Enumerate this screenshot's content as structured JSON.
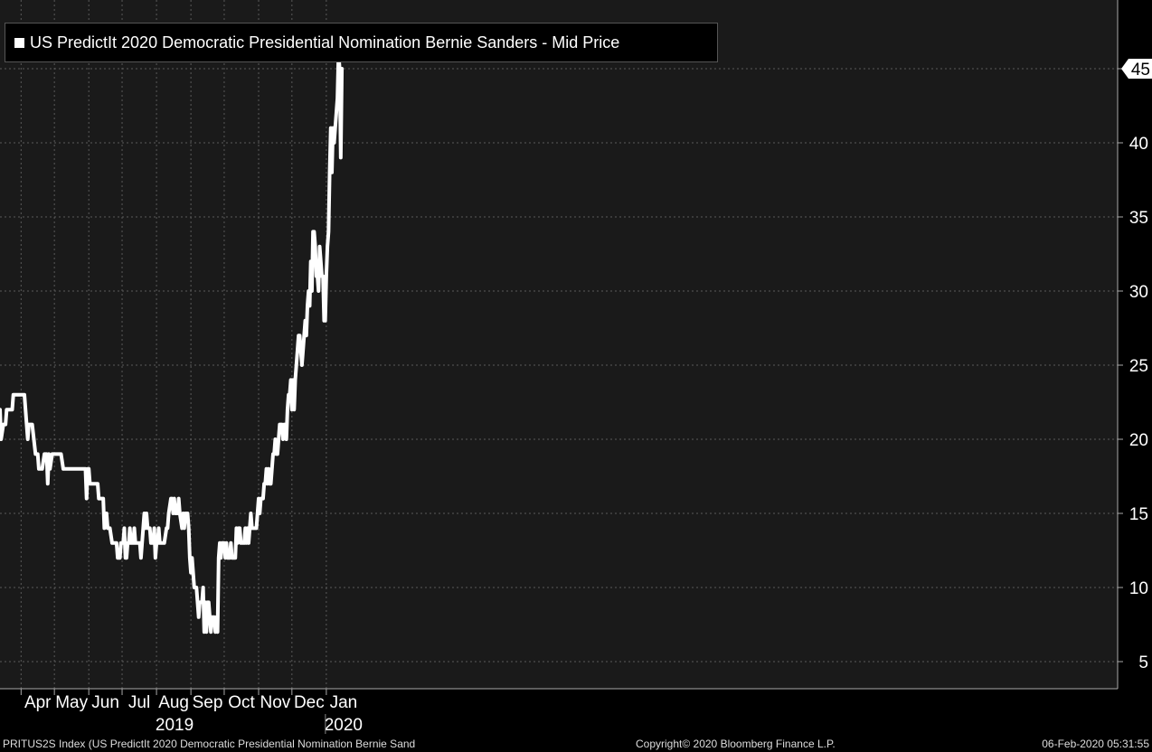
{
  "colors": {
    "background": "#1a1a1a",
    "series": "#ffffff",
    "grid": "#5a5a5a",
    "text": "#ffffff"
  },
  "chart_data": {
    "type": "line",
    "title": "",
    "xlabel": "",
    "ylabel": "",
    "ylim": [
      3,
      49
    ],
    "yticks": [
      5,
      10,
      15,
      20,
      25,
      30,
      35,
      40,
      45
    ],
    "grid": true,
    "legend_position": "top-left",
    "last_value_label": "45",
    "x_month_labels": [
      {
        "label": "Apr",
        "date": "2019-04-01"
      },
      {
        "label": "May",
        "date": "2019-05-01"
      },
      {
        "label": "Jun",
        "date": "2019-06-01"
      },
      {
        "label": "Jul",
        "date": "2019-07-01"
      },
      {
        "label": "Aug",
        "date": "2019-08-01"
      },
      {
        "label": "Sep",
        "date": "2019-09-01"
      },
      {
        "label": "Oct",
        "date": "2019-10-01"
      },
      {
        "label": "Nov",
        "date": "2019-11-01"
      },
      {
        "label": "Dec",
        "date": "2019-12-01"
      },
      {
        "label": "Jan",
        "date": "2020-01-01"
      }
    ],
    "x_year_labels": [
      {
        "label": "2019",
        "date": "2019-08-01"
      },
      {
        "label": "2020",
        "date": "2020-01-01"
      }
    ],
    "series": [
      {
        "name": "US PredictIt 2020 Democratic Presidential Nomination Bernie Sanders - Mid Price",
        "points": [
          [
            "2019-03-13",
            22
          ],
          [
            "2019-03-14",
            20
          ],
          [
            "2019-03-16",
            21
          ],
          [
            "2019-03-18",
            21
          ],
          [
            "2019-03-19",
            22
          ],
          [
            "2019-03-22",
            22
          ],
          [
            "2019-03-24",
            22
          ],
          [
            "2019-03-25",
            23
          ],
          [
            "2019-03-27",
            23
          ],
          [
            "2019-03-29",
            23
          ],
          [
            "2019-04-01",
            23
          ],
          [
            "2019-04-04",
            23
          ],
          [
            "2019-04-06",
            21
          ],
          [
            "2019-04-07",
            20
          ],
          [
            "2019-04-08",
            21
          ],
          [
            "2019-04-11",
            21
          ],
          [
            "2019-04-14",
            19
          ],
          [
            "2019-04-16",
            19
          ],
          [
            "2019-04-17",
            18
          ],
          [
            "2019-04-20",
            18
          ],
          [
            "2019-04-22",
            19
          ],
          [
            "2019-04-24",
            19
          ],
          [
            "2019-04-25",
            17
          ],
          [
            "2019-04-26",
            19
          ],
          [
            "2019-04-27",
            18
          ],
          [
            "2019-04-29",
            19
          ],
          [
            "2019-05-01",
            19
          ],
          [
            "2019-05-07",
            19
          ],
          [
            "2019-05-09",
            18
          ],
          [
            "2019-05-15",
            18
          ],
          [
            "2019-05-20",
            18
          ],
          [
            "2019-05-25",
            18
          ],
          [
            "2019-05-29",
            18
          ],
          [
            "2019-05-30",
            16
          ],
          [
            "2019-05-31",
            18
          ],
          [
            "2019-06-01",
            18
          ],
          [
            "2019-06-02",
            17
          ],
          [
            "2019-06-05",
            17
          ],
          [
            "2019-06-09",
            17
          ],
          [
            "2019-06-10",
            16
          ],
          [
            "2019-06-14",
            16
          ],
          [
            "2019-06-15",
            14
          ],
          [
            "2019-06-16",
            15
          ],
          [
            "2019-06-17",
            15
          ],
          [
            "2019-06-18",
            14
          ],
          [
            "2019-06-20",
            14
          ],
          [
            "2019-06-22",
            13
          ],
          [
            "2019-06-26",
            13
          ],
          [
            "2019-06-27",
            12
          ],
          [
            "2019-06-29",
            12
          ],
          [
            "2019-06-30",
            13
          ],
          [
            "2019-07-02",
            13
          ],
          [
            "2019-07-03",
            14
          ],
          [
            "2019-07-04",
            12
          ],
          [
            "2019-07-05",
            12
          ],
          [
            "2019-07-06",
            13
          ],
          [
            "2019-07-07",
            13
          ],
          [
            "2019-07-08",
            14
          ],
          [
            "2019-07-09",
            13
          ],
          [
            "2019-07-11",
            13
          ],
          [
            "2019-07-12",
            14
          ],
          [
            "2019-07-13",
            13
          ],
          [
            "2019-07-17",
            13
          ],
          [
            "2019-07-18",
            12
          ],
          [
            "2019-07-20",
            14
          ],
          [
            "2019-07-21",
            15
          ],
          [
            "2019-07-22",
            14
          ],
          [
            "2019-07-23",
            15
          ],
          [
            "2019-07-24",
            14
          ],
          [
            "2019-07-26",
            14
          ],
          [
            "2019-07-27",
            13
          ],
          [
            "2019-07-29",
            13
          ],
          [
            "2019-07-30",
            14
          ],
          [
            "2019-07-31",
            12
          ],
          [
            "2019-08-01",
            13
          ],
          [
            "2019-08-02",
            13
          ],
          [
            "2019-08-03",
            14
          ],
          [
            "2019-08-04",
            13
          ],
          [
            "2019-08-08",
            13
          ],
          [
            "2019-08-10",
            14
          ],
          [
            "2019-08-11",
            14
          ],
          [
            "2019-08-12",
            15
          ],
          [
            "2019-08-14",
            16
          ],
          [
            "2019-08-15",
            16
          ],
          [
            "2019-08-16",
            15
          ],
          [
            "2019-08-17",
            16
          ],
          [
            "2019-08-18",
            15
          ],
          [
            "2019-08-20",
            15
          ],
          [
            "2019-08-21",
            16
          ],
          [
            "2019-08-22",
            15
          ],
          [
            "2019-08-24",
            14
          ],
          [
            "2019-08-25",
            15
          ],
          [
            "2019-08-26",
            14
          ],
          [
            "2019-08-27",
            15
          ],
          [
            "2019-08-29",
            15
          ],
          [
            "2019-08-30",
            14
          ],
          [
            "2019-08-31",
            12
          ],
          [
            "2019-09-01",
            11
          ],
          [
            "2019-09-02",
            12
          ],
          [
            "2019-09-03",
            11
          ],
          [
            "2019-09-04",
            10
          ],
          [
            "2019-09-06",
            10
          ],
          [
            "2019-09-08",
            8
          ],
          [
            "2019-09-09",
            9
          ],
          [
            "2019-09-10",
            9
          ],
          [
            "2019-09-11",
            9
          ],
          [
            "2019-09-12",
            10
          ],
          [
            "2019-09-13",
            7
          ],
          [
            "2019-09-14",
            9
          ],
          [
            "2019-09-15",
            7
          ],
          [
            "2019-09-16",
            9
          ],
          [
            "2019-09-17",
            9
          ],
          [
            "2019-09-18",
            8
          ],
          [
            "2019-09-19",
            7
          ],
          [
            "2019-09-20",
            8
          ],
          [
            "2019-09-21",
            8
          ],
          [
            "2019-09-22",
            8
          ],
          [
            "2019-09-23",
            7
          ],
          [
            "2019-09-24",
            8
          ],
          [
            "2019-09-25",
            7
          ],
          [
            "2019-09-26",
            12
          ],
          [
            "2019-09-27",
            13
          ],
          [
            "2019-09-28",
            12
          ],
          [
            "2019-09-29",
            13
          ],
          [
            "2019-09-30",
            13
          ],
          [
            "2019-10-01",
            13
          ],
          [
            "2019-10-02",
            12
          ],
          [
            "2019-10-03",
            13
          ],
          [
            "2019-10-04",
            12
          ],
          [
            "2019-10-05",
            12
          ],
          [
            "2019-10-06",
            12
          ],
          [
            "2019-10-07",
            13
          ],
          [
            "2019-10-08",
            12
          ],
          [
            "2019-10-09",
            12
          ],
          [
            "2019-10-10",
            12
          ],
          [
            "2019-10-11",
            12
          ],
          [
            "2019-10-12",
            14
          ],
          [
            "2019-10-13",
            13
          ],
          [
            "2019-10-14",
            14
          ],
          [
            "2019-10-15",
            14
          ],
          [
            "2019-10-16",
            13
          ],
          [
            "2019-10-17",
            13
          ],
          [
            "2019-10-18",
            13
          ],
          [
            "2019-10-19",
            13
          ],
          [
            "2019-10-20",
            14
          ],
          [
            "2019-10-21",
            13
          ],
          [
            "2019-10-22",
            14
          ],
          [
            "2019-10-23",
            13
          ],
          [
            "2019-10-24",
            14
          ],
          [
            "2019-10-25",
            15
          ],
          [
            "2019-10-26",
            14
          ],
          [
            "2019-10-27",
            14
          ],
          [
            "2019-10-28",
            14
          ],
          [
            "2019-10-29",
            14
          ],
          [
            "2019-10-30",
            14
          ],
          [
            "2019-10-31",
            15
          ],
          [
            "2019-11-01",
            16
          ],
          [
            "2019-11-02",
            15
          ],
          [
            "2019-11-03",
            16
          ],
          [
            "2019-11-04",
            16
          ],
          [
            "2019-11-05",
            16
          ],
          [
            "2019-11-06",
            17
          ],
          [
            "2019-11-07",
            17
          ],
          [
            "2019-11-08",
            18
          ],
          [
            "2019-11-09",
            17
          ],
          [
            "2019-11-10",
            18
          ],
          [
            "2019-11-11",
            17
          ],
          [
            "2019-11-12",
            17
          ],
          [
            "2019-11-13",
            18
          ],
          [
            "2019-11-14",
            19
          ],
          [
            "2019-11-15",
            19
          ],
          [
            "2019-11-16",
            20
          ],
          [
            "2019-11-17",
            19
          ],
          [
            "2019-11-18",
            19
          ],
          [
            "2019-11-19",
            20
          ],
          [
            "2019-11-20",
            21
          ],
          [
            "2019-11-21",
            21
          ],
          [
            "2019-11-22",
            21
          ],
          [
            "2019-11-23",
            20
          ],
          [
            "2019-11-24",
            21
          ],
          [
            "2019-11-25",
            21
          ],
          [
            "2019-11-26",
            20
          ],
          [
            "2019-11-27",
            22
          ],
          [
            "2019-11-28",
            23
          ],
          [
            "2019-11-29",
            23
          ],
          [
            "2019-11-30",
            24
          ],
          [
            "2019-12-01",
            22
          ],
          [
            "2019-12-02",
            24
          ],
          [
            "2019-12-03",
            22
          ],
          [
            "2019-12-04",
            24
          ],
          [
            "2019-12-05",
            25
          ],
          [
            "2019-12-06",
            26
          ],
          [
            "2019-12-07",
            27
          ],
          [
            "2019-12-08",
            27
          ],
          [
            "2019-12-09",
            26
          ],
          [
            "2019-12-10",
            25
          ],
          [
            "2019-12-11",
            26
          ],
          [
            "2019-12-12",
            27
          ],
          [
            "2019-12-13",
            28
          ],
          [
            "2019-12-14",
            27
          ],
          [
            "2019-12-15",
            29
          ],
          [
            "2019-12-16",
            30
          ],
          [
            "2019-12-17",
            29
          ],
          [
            "2019-12-18",
            32
          ],
          [
            "2019-12-19",
            30
          ],
          [
            "2019-12-20",
            34
          ],
          [
            "2019-12-21",
            34
          ],
          [
            "2019-12-22",
            33
          ],
          [
            "2019-12-23",
            31
          ],
          [
            "2019-12-24",
            31
          ],
          [
            "2019-12-25",
            30
          ],
          [
            "2019-12-26",
            33
          ],
          [
            "2019-12-27",
            32
          ],
          [
            "2019-12-28",
            31
          ],
          [
            "2019-12-29",
            31
          ],
          [
            "2019-12-30",
            28
          ],
          [
            "2019-12-31",
            28
          ],
          [
            "2020-01-01",
            31
          ],
          [
            "2020-01-02",
            33
          ],
          [
            "2020-01-03",
            34
          ],
          [
            "2020-01-04",
            38
          ],
          [
            "2020-01-05",
            41
          ],
          [
            "2020-01-06",
            38
          ],
          [
            "2020-01-07",
            41
          ],
          [
            "2020-01-08",
            40
          ],
          [
            "2020-01-09",
            41
          ],
          [
            "2020-01-10",
            42
          ],
          [
            "2020-01-11",
            43
          ],
          [
            "2020-01-12",
            46
          ],
          [
            "2020-01-13",
            45
          ],
          [
            "2020-01-14",
            39
          ],
          [
            "2020-01-15",
            45
          ]
        ]
      }
    ]
  },
  "footer": {
    "left": "PRITUS2S Index (US PredictIt 2020 Democratic Presidential Nomination Bernie Sand",
    "center": "Copyright© 2020 Bloomberg Finance L.P.",
    "right": "06-Feb-2020 05:31:55"
  }
}
